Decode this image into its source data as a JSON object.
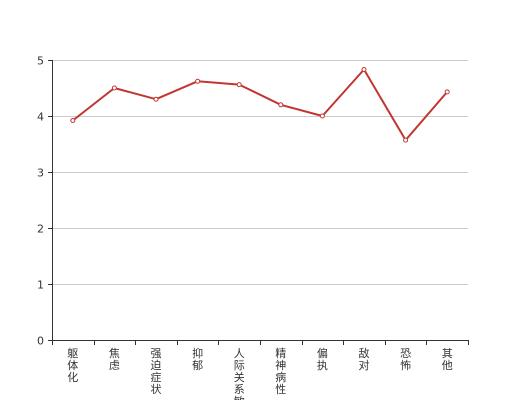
{
  "chart_data": {
    "type": "line",
    "categories": [
      "躯体化",
      "焦虑",
      "强迫症状",
      "抑郁",
      "人际关系敏感",
      "精神病性",
      "偏执",
      "敌对",
      "恐怖",
      "其他"
    ],
    "series": [
      {
        "values": [
          3.92,
          4.5,
          4.3,
          4.62,
          4.56,
          4.2,
          4.0,
          4.83,
          3.57,
          4.43
        ]
      }
    ],
    "yticks": [
      0,
      1,
      2,
      3,
      4,
      5
    ],
    "ylim": [
      0,
      5
    ],
    "grid": true,
    "colors": {
      "line": "#c23531",
      "grid": "#cccccc",
      "axis": "#333333"
    }
  }
}
